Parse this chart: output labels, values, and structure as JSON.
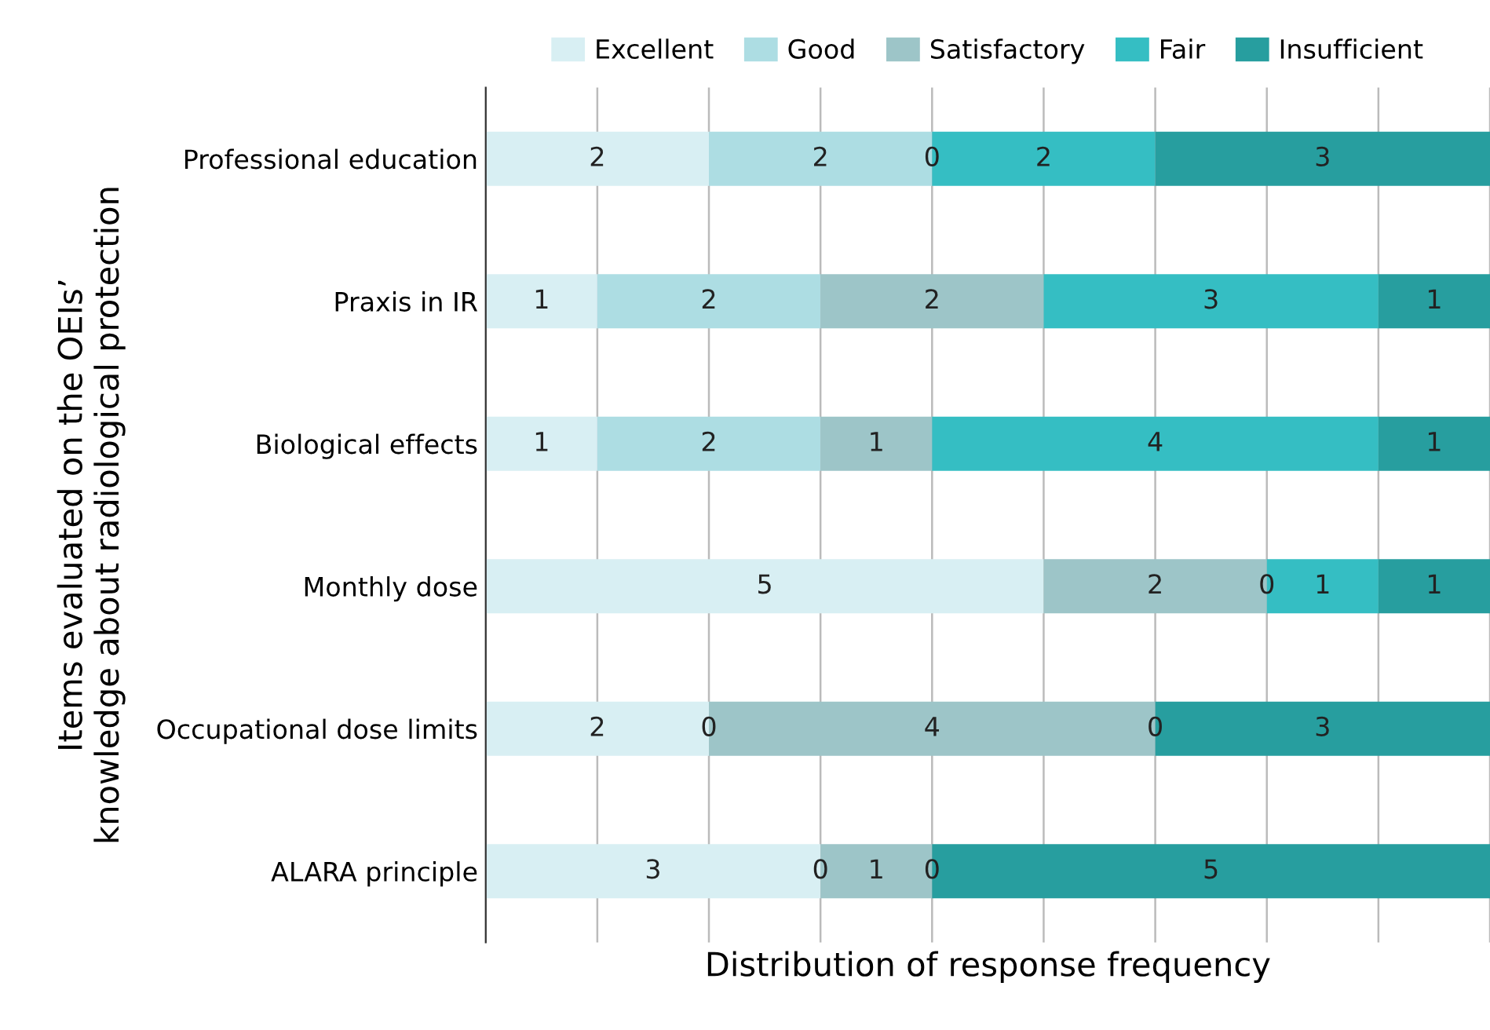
{
  "chart_data": {
    "type": "bar",
    "orientation": "horizontal",
    "stacked": true,
    "xlabel": "Distribution of response frequency",
    "ylabel": "Items evaluated on the OEIs’\nknowledge about radiological protection",
    "categories": [
      "Professional education",
      "Praxis in IR",
      "Biological effects",
      "Monthly dose",
      "Occupational dose limits",
      "ALARA principle"
    ],
    "series": [
      {
        "name": "Excellent",
        "color": "#d8eff3",
        "values": [
          2,
          1,
          1,
          5,
          2,
          3
        ]
      },
      {
        "name": "Good",
        "color": "#addde3",
        "values": [
          2,
          2,
          2,
          null,
          null,
          null
        ]
      },
      {
        "name": "Satisfactory",
        "color": "#9dc5c8",
        "values": [
          null,
          2,
          1,
          2,
          4,
          1
        ]
      },
      {
        "name": "Fair",
        "color": "#35bec3",
        "values": [
          2,
          3,
          4,
          1,
          null,
          null
        ]
      },
      {
        "name": "Insufficient",
        "color": "#279e9f",
        "values": [
          3,
          1,
          1,
          1,
          3,
          5
        ]
      }
    ],
    "xlim": [
      0,
      9
    ],
    "xticks": [
      {
        "value": 0,
        "label": null
      },
      {
        "value": 1,
        "label": null
      },
      {
        "value": 2,
        "label": null
      },
      {
        "value": 3,
        "label": null
      },
      {
        "value": 4,
        "label": null
      },
      {
        "value": 5,
        "label": null
      },
      {
        "value": 6,
        "label": null
      },
      {
        "value": 7,
        "label": null
      },
      {
        "value": 8,
        "label": null
      },
      {
        "value": 9,
        "label": null
      }
    ],
    "annotations": [
      {
        "text": "0",
        "x": 4,
        "y": "Professional education"
      },
      {
        "text": "0",
        "x": 7,
        "y": "Monthly dose"
      },
      {
        "text": "0",
        "x": 2,
        "y": "Occupational dose limits"
      },
      {
        "text": "0",
        "x": 6,
        "y": "Occupational dose limits"
      },
      {
        "text": "0",
        "x": 3,
        "y": "ALARA principle"
      },
      {
        "text": "0",
        "x": 4,
        "y": "ALARA principle"
      }
    ],
    "tick_labels": "y",
    "grid": "x",
    "legend": "top",
    "data_labels": true
  }
}
